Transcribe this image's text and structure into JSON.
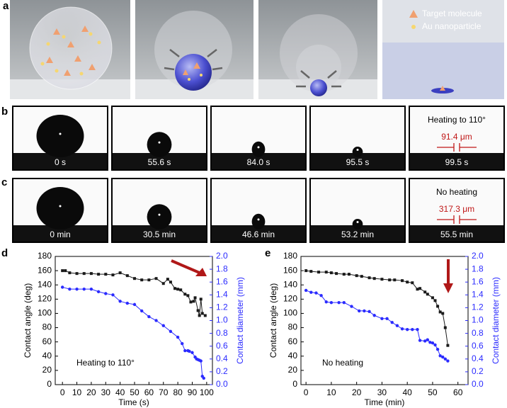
{
  "figure": {
    "panel_labels": [
      "a",
      "b",
      "c",
      "d",
      "e"
    ]
  },
  "panel_a": {
    "legend": [
      "Target molecule",
      "Au nanoparticle"
    ]
  },
  "panel_b": {
    "frames": [
      "0 s",
      "55.6 s",
      "84.0 s",
      "95.5 s",
      "99.5 s"
    ],
    "note": "Heating to 110°",
    "size": "91.4 μm"
  },
  "panel_c": {
    "frames": [
      "0 min",
      "30.5 min",
      "46.6 min",
      "53.2 min",
      "55.5 min"
    ],
    "note": "No heating",
    "size": "317.3 μm"
  },
  "chart_data": [
    {
      "type": "line",
      "annotation": "Heating to 110°",
      "x_label": "Time (s)",
      "y_label": "Contact angle (deg)",
      "y2_label": "Contact diameter (mm)",
      "xlim": [
        -5,
        104
      ],
      "xticks": [
        0,
        10,
        20,
        30,
        40,
        50,
        60,
        70,
        80,
        90,
        100
      ],
      "ylim": [
        0,
        180
      ],
      "yticks": [
        0,
        20,
        40,
        60,
        80,
        100,
        120,
        140,
        160,
        180
      ],
      "y2lim": [
        0,
        2.0
      ],
      "y2ticks": [
        {
          "value": 0,
          "label": "0.0"
        },
        0.2,
        0.4,
        0.6,
        0.8,
        {
          "value": 1,
          "label": "1.0"
        },
        1.2,
        1.4,
        1.6,
        1.8,
        {
          "value": 2,
          "label": "2.0"
        }
      ],
      "series": [
        {
          "name": "Contact angle",
          "color": "#1a1a1a",
          "marker": "square",
          "axis": "y",
          "x": [
            0,
            2,
            5,
            10,
            15,
            20,
            25,
            30,
            35,
            40,
            45,
            50,
            55,
            60,
            65,
            70,
            73,
            75,
            78,
            80,
            82,
            85,
            87,
            89,
            91,
            92,
            94,
            95,
            96,
            97,
            99
          ],
          "values": [
            160,
            160,
            157,
            156,
            156,
            156,
            155,
            155,
            154,
            157,
            153,
            149,
            147,
            147,
            149,
            142,
            148,
            144,
            135,
            134,
            133,
            127,
            125,
            116,
            117,
            122,
            104,
            97,
            120,
            100,
            97
          ]
        },
        {
          "name": "Contact diameter",
          "color": "#2b2bff",
          "marker": "circle",
          "axis": "y2",
          "x": [
            0,
            5,
            10,
            15,
            20,
            25,
            30,
            35,
            40,
            45,
            50,
            55,
            60,
            65,
            70,
            75,
            80,
            83,
            85,
            87,
            88,
            90,
            92,
            93,
            94,
            95,
            96,
            97,
            98
          ],
          "values": [
            1.52,
            1.49,
            1.49,
            1.49,
            1.49,
            1.45,
            1.42,
            1.4,
            1.3,
            1.27,
            1.25,
            1.15,
            1.06,
            1.0,
            0.92,
            0.83,
            0.74,
            0.64,
            0.53,
            0.53,
            0.52,
            0.5,
            0.43,
            0.4,
            0.39,
            0.38,
            0.37,
            0.13,
            0.1
          ]
        }
      ]
    },
    {
      "type": "line",
      "annotation": "No heating",
      "x_label": "Time (min)",
      "y_label": "Contact angle (deg)",
      "y2_label": "Contact diameter (mm)",
      "xlim": [
        -2,
        64
      ],
      "xticks": [
        0,
        10,
        20,
        30,
        40,
        50,
        60
      ],
      "ylim": [
        0,
        180
      ],
      "yticks": [
        0,
        20,
        40,
        60,
        80,
        100,
        120,
        140,
        160,
        180
      ],
      "y2lim": [
        0,
        2.0
      ],
      "y2ticks": [
        {
          "value": 0,
          "label": "0.0"
        },
        0.2,
        0.4,
        0.6,
        0.8,
        {
          "value": 1,
          "label": "1.0"
        },
        1.2,
        1.4,
        1.6,
        1.8,
        {
          "value": 2,
          "label": "2.0"
        }
      ],
      "series": [
        {
          "name": "Contact angle",
          "color": "#1a1a1a",
          "marker": "square",
          "axis": "y",
          "x": [
            0,
            2,
            5,
            8,
            10,
            12,
            15,
            17,
            20,
            22,
            25,
            27,
            30,
            33,
            35,
            38,
            40,
            42,
            44,
            45,
            47,
            48,
            50,
            51,
            52,
            53,
            54,
            55,
            56
          ],
          "values": [
            160,
            159,
            158,
            158,
            157,
            156,
            155,
            155,
            153,
            152,
            150,
            149,
            148,
            147,
            147,
            146,
            144,
            143,
            134,
            135,
            130,
            127,
            122,
            118,
            110,
            102,
            100,
            80,
            55
          ]
        },
        {
          "name": "Contact diameter",
          "color": "#2b2bff",
          "marker": "circle",
          "axis": "y2",
          "x": [
            0,
            2,
            4,
            6,
            8,
            10,
            13,
            15,
            18,
            21,
            23,
            25,
            27,
            30,
            32,
            34,
            36,
            38,
            40,
            42,
            44,
            45,
            47,
            48,
            49,
            50,
            51,
            52,
            53,
            54,
            55,
            56
          ],
          "values": [
            1.47,
            1.44,
            1.43,
            1.39,
            1.29,
            1.28,
            1.28,
            1.28,
            1.22,
            1.15,
            1.15,
            1.14,
            1.08,
            1.03,
            1.03,
            0.97,
            0.92,
            0.87,
            0.86,
            0.86,
            0.86,
            0.69,
            0.68,
            0.7,
            0.66,
            0.65,
            0.62,
            0.55,
            0.45,
            0.43,
            0.4,
            0.37
          ]
        }
      ]
    }
  ]
}
